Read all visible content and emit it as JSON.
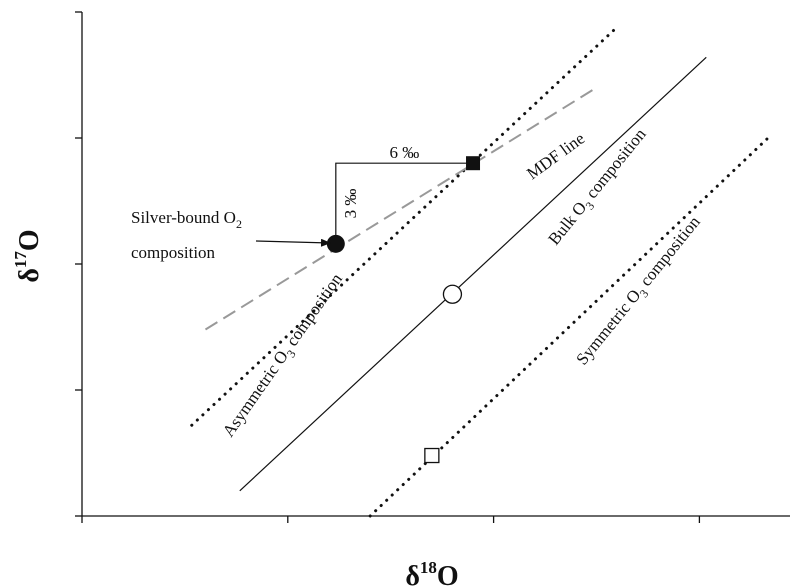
{
  "chart_data": {
    "type": "line",
    "title": "",
    "xlabel": {
      "base": "δ",
      "sup": "18",
      "rest": "O"
    },
    "ylabel": {
      "base": "δ",
      "sup": "17",
      "rest": "O"
    },
    "xlim": [
      0,
      100
    ],
    "ylim": [
      0,
      100
    ],
    "grid": false,
    "x_ticks": [
      0,
      30,
      60,
      90
    ],
    "y_ticks": [
      0,
      25,
      50,
      75,
      100
    ],
    "series": [
      {
        "kind": "dotted",
        "points": [
          [
            16,
            18
          ],
          [
            78,
            97
          ]
        ]
      },
      {
        "kind": "dashed",
        "points": [
          [
            18,
            37
          ],
          [
            75,
            85
          ]
        ]
      },
      {
        "kind": "solid",
        "points": [
          [
            23,
            5
          ],
          [
            91,
            91
          ]
        ]
      },
      {
        "kind": "dotted",
        "points": [
          [
            42,
            0
          ],
          [
            100,
            75
          ]
        ]
      }
    ],
    "markers": [
      {
        "shape": "filled-circle",
        "x": 37,
        "y": 54
      },
      {
        "shape": "filled-square",
        "x": 57,
        "y": 70
      },
      {
        "shape": "open-circle",
        "x": 54,
        "y": 44
      },
      {
        "shape": "open-square",
        "x": 51,
        "y": 12
      }
    ],
    "brackets": [
      {
        "corner": [
          37,
          70
        ],
        "label_horizontal": "6 ‰",
        "label_vertical": "3 ‰"
      }
    ],
    "annotations": {
      "mdf": "MDF line",
      "bulk": {
        "pre": "Bulk O",
        "sub": "3",
        "post": " composition"
      },
      "asym": {
        "pre": "Asymmetric O",
        "sub": "3",
        "post": " composition"
      },
      "sym": {
        "pre": "Symmetric O",
        "sub": "3",
        "post": " composition"
      },
      "silver_line1": {
        "pre": "Silver-bound O",
        "sub": "2",
        "post": ""
      },
      "silver_line2": "composition"
    }
  }
}
